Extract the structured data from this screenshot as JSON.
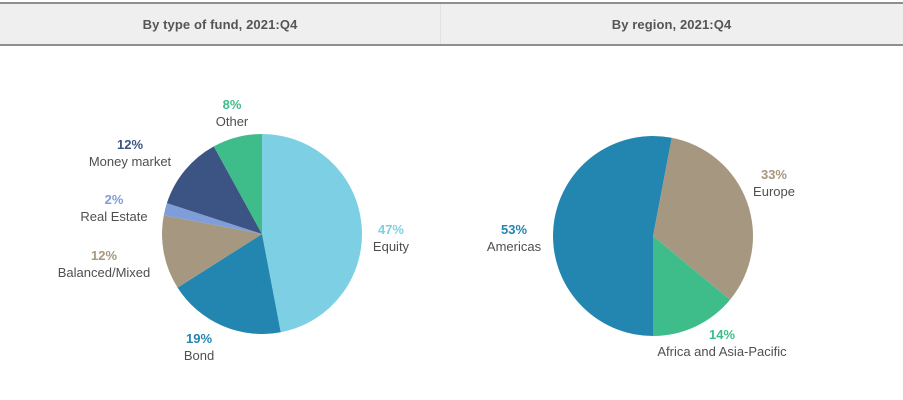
{
  "header": {
    "left_title": "By type of fund, 2021:Q4",
    "right_title": "By region, 2021:Q4"
  },
  "colors": {
    "label_text": "#4f4f4f",
    "header_text": "#555555",
    "header_bg": "#efefef",
    "header_border": "#8f8f8f",
    "cyan": "#7dd0e3",
    "blue": "#2386b0",
    "tan": "#a69880",
    "periwinkle": "#7f9dd8",
    "navy": "#3c5484",
    "green": "#3ebd8b"
  },
  "chart_data": [
    {
      "type": "pie",
      "title": "By type of fund, 2021:Q4",
      "start_angle_deg": 0,
      "direction": "clockwise",
      "slices": [
        {
          "label": "Equity",
          "value": 47,
          "pct": "47%",
          "color": "#7dd0e3"
        },
        {
          "label": "Bond",
          "value": 19,
          "pct": "19%",
          "color": "#2386b0"
        },
        {
          "label": "Balanced/Mixed",
          "value": 12,
          "pct": "12%",
          "color": "#a69880"
        },
        {
          "label": "Real Estate",
          "value": 2,
          "pct": "2%",
          "color": "#7f9dd8"
        },
        {
          "label": "Money market",
          "value": 12,
          "pct": "12%",
          "color": "#3c5484"
        },
        {
          "label": "Other",
          "value": 8,
          "pct": "8%",
          "color": "#3ebd8b"
        }
      ]
    },
    {
      "type": "pie",
      "title": "By region, 2021:Q4",
      "start_angle_deg": 10.8,
      "direction": "clockwise",
      "slices": [
        {
          "label": "Europe",
          "value": 33,
          "pct": "33%",
          "color": "#a69880"
        },
        {
          "label": "Africa and Asia-Pacific",
          "value": 14,
          "pct": "14%",
          "color": "#3ebd8b"
        },
        {
          "label": "Americas",
          "value": 53,
          "pct": "53%",
          "color": "#2386b0"
        }
      ]
    }
  ]
}
